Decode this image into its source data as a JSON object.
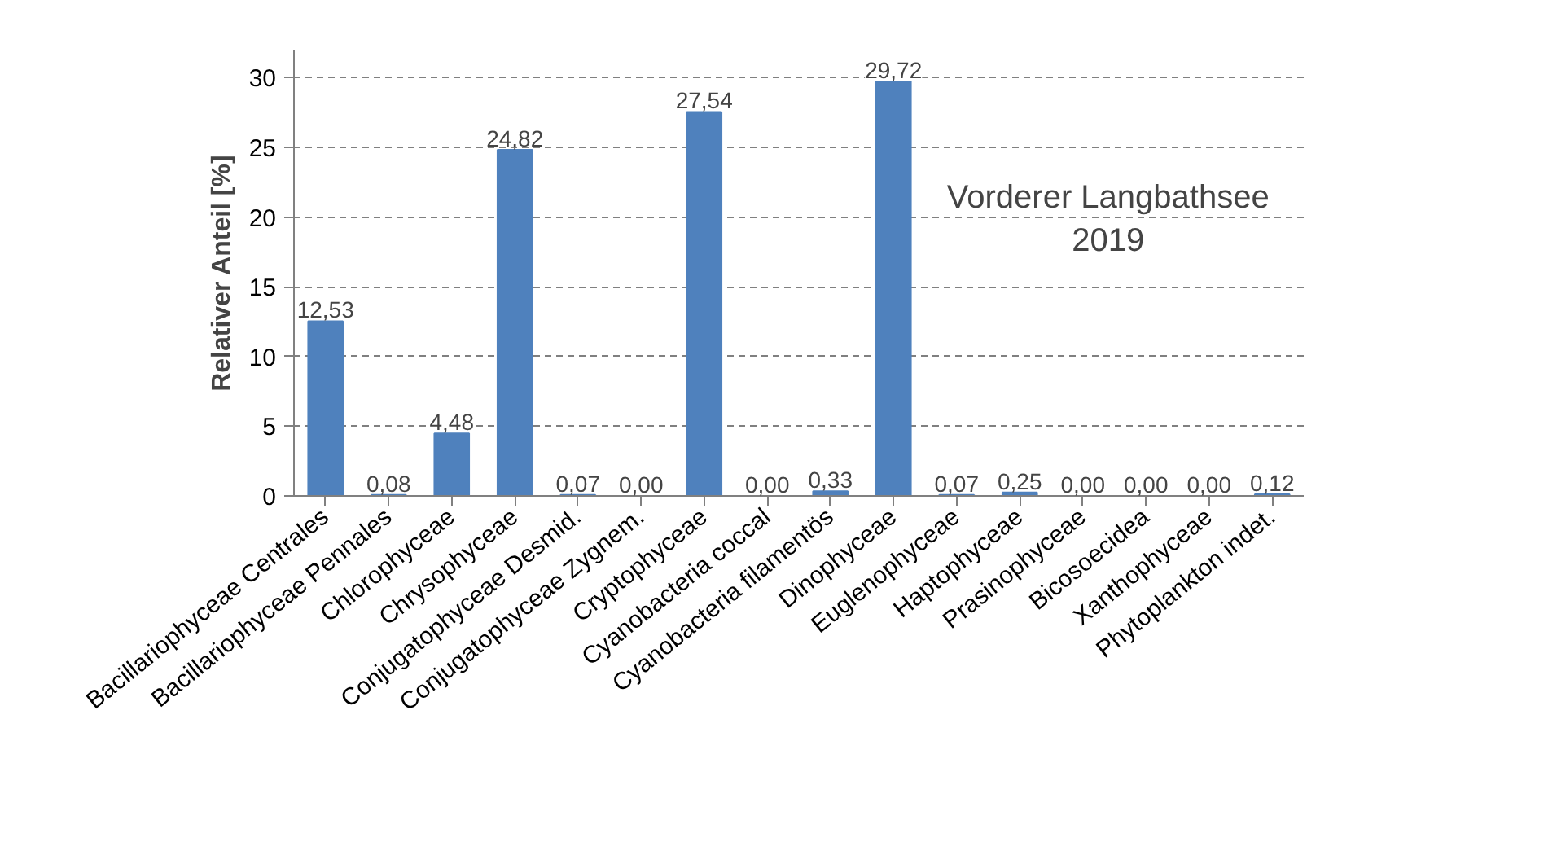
{
  "chart_data": {
    "type": "bar",
    "ylabel": "Relativer Anteil [%]",
    "categories": [
      "Bacillariophyceae Centrales",
      "Bacillariophyceae Pennales",
      "Chlorophyceae",
      "Chrysophyceae",
      "Conjugatophyceae Desmid.",
      "Conjugatophyceae Zygnem.",
      "Cryptophyceae",
      "Cyanobacteria coccal",
      "Cyanobacteria filamentös",
      "Dinophyceae",
      "Euglenophyceae",
      "Haptophyceae",
      "Prasinophyceae",
      "Bicosoecidea",
      "Xanthophyceae",
      "Phytoplankton indet."
    ],
    "values": [
      12.53,
      0.08,
      4.48,
      24.82,
      0.07,
      0.0,
      27.54,
      0.0,
      0.33,
      29.72,
      0.07,
      0.25,
      0.0,
      0.0,
      0.0,
      0.12
    ],
    "value_labels": [
      "12,53",
      "0,08",
      "4,48",
      "24,82",
      "0,07",
      "0,00",
      "27,54",
      "0,00",
      "0,33",
      "29,72",
      "0,07",
      "0,25",
      "0,00",
      "0,00",
      "0,00",
      "0,12"
    ],
    "color": "#4f81bd",
    "ylim": [
      0,
      32
    ],
    "yticks": [
      0,
      5,
      10,
      15,
      20,
      25,
      30
    ],
    "grid": "y",
    "annotations": [
      {
        "text": "Vorderer Langbathsee\n2019"
      }
    ]
  }
}
